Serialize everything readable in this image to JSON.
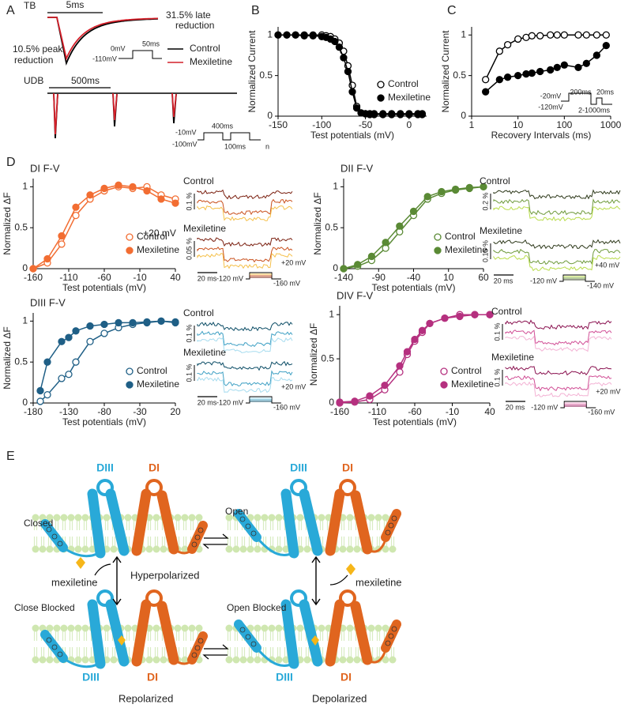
{
  "panel_labels": [
    "A",
    "B",
    "C",
    "D",
    "E"
  ],
  "panel_a": {
    "tb": "TB",
    "tb_scale": "5ms",
    "late": [
      "31.5% late",
      "reduction"
    ],
    "peak": [
      "10.5% peak",
      "reduction"
    ],
    "protocol": [
      "0mV",
      "50ms",
      "-110mV"
    ],
    "legend": [
      "Control",
      "Mexiletine"
    ],
    "udb": "UDB",
    "udb_scale": "500ms",
    "udb_protocol": [
      "-10mV",
      "400ms",
      "-100mV",
      "100ms",
      "n"
    ]
  },
  "chart_data": [
    {
      "type": "line",
      "x_label": "Test potentials (mV)",
      "y_label": "Normalized Current",
      "xlim": [
        -150,
        20
      ],
      "ylim": [
        0,
        1.1
      ],
      "xticks": [
        -150,
        -100,
        -50,
        0
      ],
      "yticks": [
        0,
        0.5,
        1
      ],
      "legend": "lower right",
      "x": [
        -150,
        -140,
        -130,
        -120,
        -110,
        -100,
        -95,
        -90,
        -85,
        -80,
        -75,
        -70,
        -65,
        -60,
        -55,
        -50,
        -45,
        -40,
        -30,
        -20,
        -10,
        0,
        10,
        15
      ],
      "series": [
        {
          "name": "Control",
          "color": "#000000",
          "marker": "open",
          "values": [
            1,
            1,
            1,
            1,
            1,
            1,
            0.99,
            0.98,
            0.95,
            0.9,
            0.8,
            0.62,
            0.38,
            0.12,
            0.04,
            0.03,
            0.03,
            0.03,
            0.03,
            0.03,
            0.03,
            0.03,
            0.03,
            0.03
          ]
        },
        {
          "name": "Mexiletine",
          "color": "#000000",
          "marker": "filled",
          "values": [
            1,
            1,
            1,
            0.99,
            0.99,
            0.98,
            0.97,
            0.95,
            0.92,
            0.85,
            0.72,
            0.55,
            0.3,
            0.1,
            0.04,
            0.03,
            0.02,
            0.02,
            0.02,
            0.02,
            0.02,
            0.02,
            0.02,
            0.02
          ]
        }
      ]
    },
    {
      "type": "line",
      "xscale": "log",
      "x_label": "Recovery Intervals (ms)",
      "y_label": "Normalized Current",
      "xlim": [
        1,
        1000
      ],
      "ylim": [
        0,
        1.1
      ],
      "xticks": [
        1,
        10,
        100,
        1000
      ],
      "yticks": [
        0,
        0.5,
        1
      ],
      "annotations": [
        "-20mV",
        "-120mV",
        "200ms",
        "20ms",
        "2-1000ms"
      ],
      "x": [
        2,
        4,
        6,
        10,
        15,
        20,
        30,
        50,
        70,
        100,
        200,
        300,
        500,
        800
      ],
      "series": [
        {
          "name": "Control",
          "color": "#000000",
          "marker": "open",
          "values": [
            0.45,
            0.8,
            0.88,
            0.95,
            0.97,
            0.99,
            0.99,
            1,
            1,
            1,
            1,
            1,
            1,
            1
          ]
        },
        {
          "name": "Mexiletine",
          "color": "#000000",
          "marker": "filled",
          "values": [
            0.3,
            0.45,
            0.48,
            0.5,
            0.52,
            0.53,
            0.55,
            0.57,
            0.6,
            0.63,
            0.6,
            0.65,
            0.75,
            0.87
          ]
        }
      ]
    },
    {
      "type": "line",
      "title": "DI F-V",
      "x_label": "Test potentials (mV)",
      "y_label": "Normalized ΔF",
      "xlim": [
        -160,
        40
      ],
      "ylim": [
        0,
        1.1
      ],
      "xticks": [
        -160,
        -110,
        -60,
        -10,
        40
      ],
      "yticks": [
        0,
        0.5,
        1
      ],
      "legend": "lower right",
      "annotations": [
        "+20 mV"
      ],
      "x": [
        -160,
        -140,
        -120,
        -100,
        -80,
        -60,
        -40,
        -20,
        0,
        20,
        40
      ],
      "series": [
        {
          "name": "Control",
          "color": "#f26d32",
          "marker": "open",
          "values": [
            0,
            0.07,
            0.3,
            0.65,
            0.85,
            0.95,
            1,
            0.98,
            1,
            0.9,
            0.85
          ]
        },
        {
          "name": "Mexiletine",
          "color": "#f26d32",
          "marker": "filled",
          "values": [
            0,
            0.12,
            0.4,
            0.75,
            0.9,
            0.98,
            1.02,
            1,
            0.95,
            0.85,
            0.8
          ]
        }
      ]
    },
    {
      "type": "line",
      "title": "DII F-V",
      "x_label": "Test potentials (mV)",
      "y_label": "Normalized ΔF",
      "xlim": [
        -140,
        60
      ],
      "ylim": [
        0,
        1.1
      ],
      "xticks": [
        -140,
        -90,
        -40,
        10,
        60
      ],
      "yticks": [
        0,
        0.5,
        1
      ],
      "legend": "lower right",
      "x": [
        -140,
        -120,
        -100,
        -80,
        -60,
        -40,
        -20,
        0,
        20,
        40,
        60
      ],
      "series": [
        {
          "name": "Control",
          "color": "#5a8a35",
          "marker": "open",
          "values": [
            0,
            0.03,
            0.1,
            0.25,
            0.45,
            0.65,
            0.85,
            0.92,
            0.96,
            0.98,
            1
          ]
        },
        {
          "name": "Mexiletine",
          "color": "#5a8a35",
          "marker": "filled",
          "values": [
            0,
            0.05,
            0.15,
            0.32,
            0.52,
            0.7,
            0.88,
            0.94,
            0.97,
            0.99,
            1
          ]
        }
      ]
    },
    {
      "type": "line",
      "title": "DIII F-V",
      "x_label": "Test potentials (mV)",
      "y_label": "Normalized ΔF",
      "xlim": [
        -180,
        20
      ],
      "ylim": [
        0,
        1.1
      ],
      "xticks": [
        -180,
        -130,
        -80,
        -30,
        20
      ],
      "yticks": [
        0,
        0.5,
        1
      ],
      "legend": "lower right",
      "x": [
        -170,
        -160,
        -140,
        -130,
        -120,
        -100,
        -80,
        -60,
        -40,
        -20,
        0,
        20
      ],
      "series": [
        {
          "name": "Control",
          "color": "#1f5f86",
          "marker": "open",
          "values": [
            0.02,
            0.1,
            0.3,
            0.35,
            0.5,
            0.75,
            0.85,
            0.92,
            0.96,
            0.98,
            1,
            0.98
          ]
        },
        {
          "name": "Mexiletine",
          "color": "#1f5f86",
          "marker": "filled",
          "values": [
            0.15,
            0.5,
            0.75,
            0.8,
            0.88,
            0.94,
            0.96,
            0.98,
            0.98,
            0.99,
            1,
            0.99
          ]
        }
      ]
    },
    {
      "type": "line",
      "title": "DIV F-V",
      "x_label": "Test potentials (mV)",
      "y_label": "Normalized ΔF",
      "xlim": [
        -160,
        40
      ],
      "ylim": [
        0,
        1.1
      ],
      "xticks": [
        -160,
        -110,
        -60,
        -10,
        40
      ],
      "yticks": [
        0,
        0.5,
        1
      ],
      "legend": "lower right",
      "x": [
        -160,
        -140,
        -120,
        -100,
        -80,
        -70,
        -60,
        -50,
        -40,
        -20,
        0,
        20,
        40
      ],
      "series": [
        {
          "name": "Control",
          "color": "#b5307f",
          "marker": "open",
          "values": [
            0,
            0.01,
            0.04,
            0.15,
            0.35,
            0.55,
            0.7,
            0.8,
            0.9,
            0.96,
            1,
            1,
            1
          ]
        },
        {
          "name": "Mexiletine",
          "color": "#b5307f",
          "marker": "filled",
          "values": [
            0.01,
            0.02,
            0.08,
            0.2,
            0.42,
            0.58,
            0.72,
            0.82,
            0.9,
            0.96,
            0.98,
            1,
            1
          ]
        }
      ]
    }
  ],
  "traces": [
    {
      "control": "Control",
      "control_scale": "0.1 %",
      "mexiletine": "Mexiletine",
      "mexiletine_scale": "0.05 %",
      "time_scale": "20 ms",
      "top": "+20 mV",
      "hold": "-120 mV",
      "bottom": "-160 mV"
    },
    {
      "control": "Control",
      "control_scale": "0.2 %",
      "mexiletine": "Mexiletine",
      "mexiletine_scale": "0.15 %",
      "time_scale": "20 ms",
      "top": "+40 mV",
      "hold": "-120 mV",
      "bottom": "-140 mV"
    },
    {
      "control": "Control",
      "control_scale": "0.1 %",
      "mexiletine": "Mexiletine",
      "mexiletine_scale": "0.1 %",
      "time_scale": "20 ms",
      "top": "+20 mV",
      "hold": "-120 mV",
      "bottom": "-160 mV"
    },
    {
      "control": "Control",
      "control_scale": "0.1 %",
      "mexiletine": "Mexiletine",
      "mexiletine_scale": "0.1 %",
      "time_scale": "20 ms",
      "top": "+20 mV",
      "hold": "-120 mV",
      "bottom": "-160 mV"
    }
  ],
  "panel_e": {
    "states": [
      {
        "name": "Closed",
        "diii": "DIII",
        "di": "DI"
      },
      {
        "name": "Open",
        "diii": "DIII",
        "di": "DI"
      },
      {
        "name": "Close Blocked",
        "diii": "DIII",
        "di": "DI"
      },
      {
        "name": "Open Blocked",
        "diii": "DIII",
        "di": "DI"
      }
    ],
    "drug": [
      "mexiletine",
      "mexiletine"
    ],
    "hyperpolarized": "Hyperpolarized",
    "repolarized": "Repolarized",
    "depolarized": "Depolarized"
  }
}
